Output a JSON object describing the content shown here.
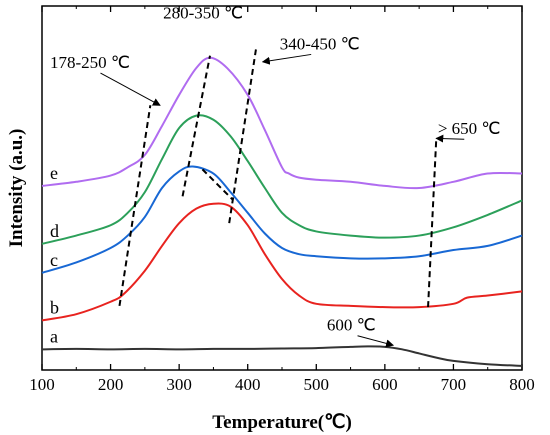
{
  "chart_data": {
    "type": "line",
    "xlabel": "Temperature(℃)",
    "ylabel": "Intensity (a.u.)",
    "xlim": [
      100,
      800
    ],
    "xticks": [
      100,
      200,
      300,
      400,
      500,
      600,
      700,
      800
    ],
    "grid": false,
    "yticks_shown": false,
    "series": [
      {
        "name": "a",
        "color": "#333333",
        "x": [
          100,
          150,
          200,
          250,
          300,
          350,
          400,
          450,
          500,
          550,
          575,
          600,
          625,
          650,
          675,
          700,
          750,
          800
        ],
        "y": [
          0.3,
          0.31,
          0.3,
          0.31,
          0.3,
          0.31,
          0.31,
          0.32,
          0.33,
          0.36,
          0.37,
          0.36,
          0.3,
          0.2,
          0.1,
          0.02,
          -0.06,
          -0.1
        ]
      },
      {
        "name": "b",
        "color": "#e8231f",
        "x": [
          100,
          150,
          200,
          220,
          250,
          275,
          300,
          325,
          350,
          375,
          400,
          425,
          450,
          475,
          500,
          550,
          600,
          650,
          700,
          720,
          750,
          800
        ],
        "y": [
          1.0,
          1.15,
          1.45,
          1.65,
          2.2,
          2.8,
          3.35,
          3.7,
          3.82,
          3.75,
          3.3,
          2.6,
          2.0,
          1.6,
          1.4,
          1.35,
          1.32,
          1.32,
          1.4,
          1.55,
          1.6,
          1.7
        ]
      },
      {
        "name": "c",
        "color": "#1868d4",
        "x": [
          100,
          150,
          200,
          225,
          250,
          275,
          300,
          320,
          350,
          375,
          400,
          425,
          450,
          475,
          500,
          550,
          600,
          650,
          700,
          750,
          800
        ],
        "y": [
          2.15,
          2.4,
          2.75,
          3.05,
          3.5,
          4.2,
          4.6,
          4.72,
          4.55,
          4.1,
          3.6,
          3.1,
          2.75,
          2.6,
          2.55,
          2.5,
          2.5,
          2.55,
          2.7,
          2.8,
          3.05
        ]
      },
      {
        "name": "d",
        "color": "#2ca05a",
        "x": [
          100,
          150,
          200,
          225,
          250,
          275,
          300,
          325,
          350,
          375,
          400,
          425,
          450,
          475,
          500,
          550,
          600,
          650,
          700,
          750,
          800
        ],
        "y": [
          2.85,
          3.05,
          3.3,
          3.6,
          4.1,
          4.9,
          5.65,
          5.95,
          5.85,
          5.45,
          4.85,
          4.2,
          3.6,
          3.3,
          3.15,
          3.05,
          3.0,
          3.05,
          3.25,
          3.55,
          3.9
        ]
      },
      {
        "name": "e",
        "color": "#b06cf0",
        "x": [
          100,
          150,
          200,
          225,
          250,
          275,
          300,
          325,
          345,
          370,
          400,
          425,
          450,
          460,
          475,
          500,
          550,
          600,
          650,
          700,
          750,
          800
        ],
        "y": [
          4.25,
          4.35,
          4.5,
          4.7,
          5.0,
          5.7,
          6.45,
          7.1,
          7.35,
          7.1,
          6.45,
          5.6,
          4.7,
          4.55,
          4.45,
          4.4,
          4.35,
          4.25,
          4.2,
          4.35,
          4.55,
          4.55
        ]
      }
    ],
    "guide_lines": [
      {
        "points": [
          [
            213,
            1.35
          ],
          [
            258,
            6.2
          ]
        ]
      },
      {
        "points": [
          [
            305,
            4.0
          ],
          [
            345,
            7.4
          ]
        ]
      },
      {
        "points": [
          [
            334,
            4.65
          ],
          [
            378,
            3.92
          ]
        ]
      },
      {
        "points": [
          [
            373,
            3.35
          ],
          [
            412,
            7.55
          ]
        ]
      },
      {
        "points": [
          [
            663,
            1.32
          ],
          [
            675,
            5.4
          ]
        ]
      }
    ],
    "annotations": [
      {
        "text": "178-250 ℃",
        "at": [
          170,
          7.1
        ],
        "arrow_to": [
          272,
          6.2
        ]
      },
      {
        "text": "280-350 ℃",
        "at": [
          335,
          8.3
        ]
      },
      {
        "text": "340-450 ℃",
        "at": [
          505,
          7.55
        ],
        "arrow_to": [
          422,
          7.25
        ]
      },
      {
        "text": "> 650 ℃",
        "at": [
          723,
          5.5
        ],
        "arrow_to": [
          675,
          5.4
        ]
      },
      {
        "text": "600 ℃",
        "at": [
          551,
          0.75
        ],
        "arrow_to": [
          612,
          0.4
        ]
      }
    ]
  }
}
